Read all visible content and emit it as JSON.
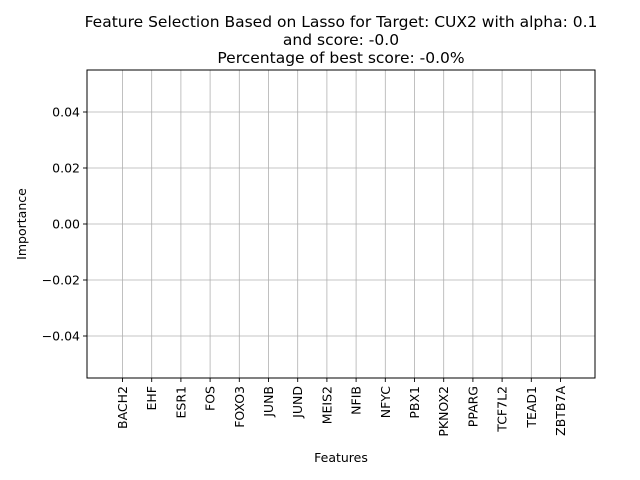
{
  "chart_data": {
    "type": "bar",
    "title_lines": [
      "Feature Selection Based on Lasso for Target: CUX2 with alpha: 0.1",
      "and score: -0.0",
      "Percentage of best score: -0.0%"
    ],
    "xlabel": "Features",
    "ylabel": "Importance",
    "categories": [
      "BACH2",
      "EHF",
      "ESR1",
      "FOS",
      "FOXO3",
      "JUNB",
      "JUND",
      "MEIS2",
      "NFIB",
      "NFYC",
      "PBX1",
      "PKNOX2",
      "PPARG",
      "TCF7L2",
      "TEAD1",
      "ZBTB7A"
    ],
    "values": [
      0,
      0,
      0,
      0,
      0,
      0,
      0,
      0,
      0,
      0,
      0,
      0,
      0,
      0,
      0,
      0
    ],
    "ylim": [
      -0.055,
      0.055
    ],
    "yticks": [
      0.04,
      0.02,
      0.0,
      -0.02,
      -0.04
    ],
    "ytick_labels": [
      "0.04",
      "0.02",
      "0.00",
      "−0.02",
      "−0.04"
    ],
    "grid": true,
    "colors": {
      "axis": "#000000",
      "grid": "#b0b0b0",
      "bar": "#1f77b4"
    }
  }
}
